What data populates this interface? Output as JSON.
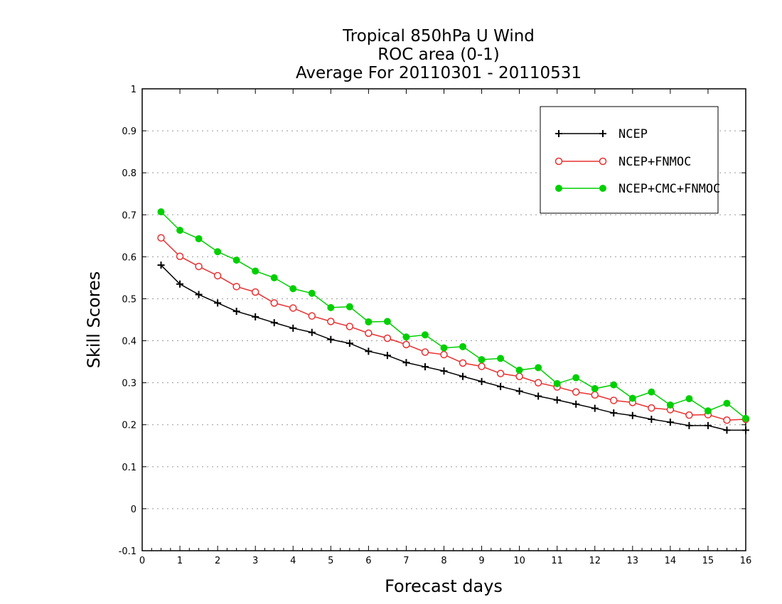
{
  "chart_data": {
    "type": "line",
    "title_lines": [
      "Tropical 850hPa U Wind",
      "ROC area (0-1)",
      "Average For 20110301 - 20110531"
    ],
    "xlabel": "Forecast days",
    "ylabel": "Skill Scores",
    "xlim": [
      0,
      16
    ],
    "ylim": [
      -0.1,
      1
    ],
    "x_ticks": [
      0,
      1,
      2,
      3,
      4,
      5,
      6,
      7,
      8,
      9,
      10,
      11,
      12,
      13,
      14,
      15,
      16
    ],
    "y_ticks": [
      -0.1,
      0,
      0.1,
      0.2,
      0.3,
      0.4,
      0.5,
      0.6,
      0.7,
      0.8,
      0.9,
      1
    ],
    "y_tick_labels": [
      "-0.1",
      "0",
      "0.1",
      "0.2",
      "0.3",
      "0.4",
      "0.5",
      "0.6",
      "0.7",
      "0.8",
      "0.9",
      "1"
    ],
    "grid": "horizontal dotted",
    "legend_position": "top-right",
    "x": [
      0.5,
      1,
      1.5,
      2,
      2.5,
      3,
      3.5,
      4,
      4.5,
      5,
      5.5,
      6,
      6.5,
      7,
      7.5,
      8,
      8.5,
      9,
      9.5,
      10,
      10.5,
      11,
      11.5,
      12,
      12.5,
      13,
      13.5,
      14,
      14.5,
      15,
      15.5,
      16
    ],
    "series": [
      {
        "name": "NCEP",
        "color": "#000000",
        "marker": "plus",
        "values": [
          0.58,
          0.535,
          0.51,
          0.49,
          0.47,
          0.457,
          0.443,
          0.43,
          0.42,
          0.403,
          0.394,
          0.375,
          0.365,
          0.348,
          0.338,
          0.328,
          0.315,
          0.303,
          0.291,
          0.28,
          0.268,
          0.259,
          0.249,
          0.239,
          0.228,
          0.222,
          0.213,
          0.206,
          0.198,
          0.198,
          0.187,
          0.187
        ]
      },
      {
        "name": "NCEP+FNMOC",
        "color": "#e83030",
        "marker": "open-circle",
        "values": [
          0.645,
          0.601,
          0.577,
          0.555,
          0.529,
          0.516,
          0.49,
          0.478,
          0.459,
          0.446,
          0.434,
          0.418,
          0.406,
          0.391,
          0.373,
          0.367,
          0.347,
          0.339,
          0.322,
          0.315,
          0.3,
          0.29,
          0.278,
          0.271,
          0.258,
          0.253,
          0.24,
          0.236,
          0.223,
          0.224,
          0.211,
          0.213
        ]
      },
      {
        "name": "NCEP+CMC+FNMOC",
        "color": "#00d000",
        "marker": "filled-circle",
        "values": [
          0.707,
          0.663,
          0.643,
          0.612,
          0.592,
          0.566,
          0.55,
          0.524,
          0.513,
          0.479,
          0.481,
          0.445,
          0.446,
          0.409,
          0.414,
          0.383,
          0.386,
          0.355,
          0.358,
          0.33,
          0.336,
          0.298,
          0.312,
          0.286,
          0.295,
          0.263,
          0.278,
          0.247,
          0.262,
          0.233,
          0.251,
          0.215
        ]
      }
    ]
  }
}
